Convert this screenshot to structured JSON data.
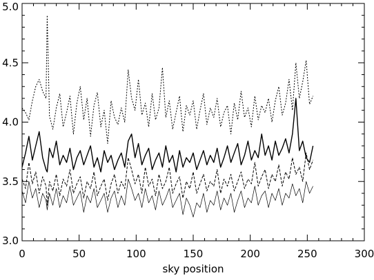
{
  "chart_data": {
    "type": "line",
    "title": "",
    "xlabel": "sky position",
    "ylabel": "",
    "xlim": [
      0,
      300
    ],
    "ylim": [
      3.0,
      5.0
    ],
    "x_ticks": [
      0,
      50,
      100,
      150,
      200,
      250,
      300
    ],
    "x_tick_labels": [
      "0",
      "50",
      "100",
      "150",
      "200",
      "250",
      "300"
    ],
    "y_ticks": [
      3.0,
      3.5,
      4.0,
      4.5,
      5.0
    ],
    "y_tick_labels": [
      "3.0",
      "3.5",
      "4.0",
      "4.5",
      "5.0"
    ],
    "x_minor_step": 10,
    "y_minor_step": 0.1,
    "grid": false,
    "legend": "none",
    "line_color": "#000000",
    "series": [
      {
        "style": "dotted",
        "x": [
          0,
          3,
          6,
          9,
          12,
          15,
          18,
          21,
          22,
          24,
          27,
          30,
          33,
          36,
          39,
          42,
          45,
          48,
          51,
          54,
          57,
          60,
          63,
          66,
          69,
          72,
          75,
          78,
          81,
          84,
          87,
          90,
          93,
          96,
          99,
          102,
          105,
          108,
          111,
          114,
          117,
          120,
          123,
          126,
          129,
          132,
          135,
          138,
          141,
          144,
          147,
          150,
          153,
          156,
          159,
          162,
          165,
          168,
          171,
          174,
          177,
          180,
          183,
          186,
          189,
          192,
          195,
          198,
          201,
          204,
          207,
          210,
          213,
          216,
          219,
          222,
          225,
          228,
          231,
          234,
          237,
          240,
          243,
          246,
          249,
          252,
          255
        ],
        "y": [
          4.12,
          4.08,
          4.02,
          4.18,
          4.3,
          4.36,
          4.26,
          4.2,
          4.9,
          4.05,
          3.94,
          4.12,
          4.24,
          3.96,
          4.08,
          4.22,
          3.9,
          4.16,
          4.3,
          4.02,
          4.2,
          3.88,
          4.14,
          4.25,
          3.96,
          4.1,
          3.82,
          4.18,
          4.04,
          3.98,
          4.12,
          4.0,
          4.44,
          4.2,
          4.1,
          4.36,
          4.06,
          4.16,
          3.96,
          4.24,
          4.02,
          4.12,
          4.46,
          4.04,
          4.18,
          3.94,
          4.08,
          4.22,
          3.92,
          4.14,
          4.06,
          4.18,
          3.94,
          4.1,
          4.24,
          3.98,
          4.12,
          4.04,
          4.2,
          3.96,
          4.08,
          4.14,
          3.9,
          4.16,
          4.02,
          4.26,
          4.04,
          4.12,
          3.96,
          4.22,
          4.02,
          4.14,
          4.08,
          4.2,
          4.0,
          4.18,
          4.3,
          4.06,
          4.16,
          4.36,
          4.1,
          4.5,
          4.2,
          4.34,
          4.52,
          4.15,
          4.22
        ]
      },
      {
        "style": "solid",
        "x": [
          0,
          3,
          6,
          9,
          12,
          15,
          18,
          21,
          22,
          24,
          27,
          30,
          33,
          36,
          39,
          42,
          45,
          48,
          51,
          54,
          57,
          60,
          63,
          66,
          69,
          72,
          75,
          78,
          81,
          84,
          87,
          90,
          93,
          96,
          99,
          102,
          105,
          108,
          111,
          114,
          117,
          120,
          123,
          126,
          129,
          132,
          135,
          138,
          141,
          144,
          147,
          150,
          153,
          156,
          159,
          162,
          165,
          168,
          171,
          174,
          177,
          180,
          183,
          186,
          189,
          192,
          195,
          198,
          201,
          204,
          207,
          210,
          213,
          216,
          219,
          222,
          225,
          228,
          231,
          234,
          237,
          240,
          243,
          246,
          249,
          252,
          255
        ],
        "y": [
          3.62,
          3.74,
          3.88,
          3.68,
          3.8,
          3.92,
          3.7,
          3.6,
          3.58,
          3.78,
          3.7,
          3.84,
          3.64,
          3.72,
          3.66,
          3.78,
          3.6,
          3.7,
          3.76,
          3.64,
          3.72,
          3.8,
          3.62,
          3.7,
          3.58,
          3.76,
          3.66,
          3.72,
          3.6,
          3.68,
          3.74,
          3.62,
          3.84,
          3.9,
          3.7,
          3.82,
          3.64,
          3.72,
          3.78,
          3.6,
          3.68,
          3.74,
          3.62,
          3.8,
          3.66,
          3.72,
          3.58,
          3.76,
          3.62,
          3.7,
          3.66,
          3.74,
          3.6,
          3.68,
          3.76,
          3.64,
          3.72,
          3.66,
          3.78,
          3.62,
          3.7,
          3.8,
          3.66,
          3.74,
          3.82,
          3.64,
          3.72,
          3.84,
          3.68,
          3.76,
          3.7,
          3.9,
          3.72,
          3.8,
          3.68,
          3.84,
          3.72,
          3.78,
          3.86,
          3.74,
          3.9,
          4.2,
          3.76,
          3.84,
          3.7,
          3.66,
          3.8
        ]
      },
      {
        "style": "dashed",
        "x": [
          0,
          3,
          6,
          9,
          12,
          15,
          18,
          21,
          22,
          24,
          27,
          30,
          33,
          36,
          39,
          42,
          45,
          48,
          51,
          54,
          57,
          60,
          63,
          66,
          69,
          72,
          75,
          78,
          81,
          84,
          87,
          90,
          93,
          96,
          99,
          102,
          105,
          108,
          111,
          114,
          117,
          120,
          123,
          126,
          129,
          132,
          135,
          138,
          141,
          144,
          147,
          150,
          153,
          156,
          159,
          162,
          165,
          168,
          171,
          174,
          177,
          180,
          183,
          186,
          189,
          192,
          195,
          198,
          201,
          204,
          207,
          210,
          213,
          216,
          219,
          222,
          225,
          228,
          231,
          234,
          237,
          240,
          243,
          246,
          249,
          252,
          255
        ],
        "y": [
          3.52,
          3.44,
          3.66,
          3.48,
          3.58,
          3.4,
          3.54,
          3.46,
          3.3,
          3.5,
          3.42,
          3.56,
          3.38,
          3.52,
          3.46,
          3.6,
          3.4,
          3.48,
          3.54,
          3.36,
          3.5,
          3.44,
          3.58,
          3.38,
          3.46,
          3.52,
          3.34,
          3.48,
          3.56,
          3.4,
          3.5,
          3.44,
          3.7,
          3.6,
          3.48,
          3.56,
          3.4,
          3.62,
          3.46,
          3.52,
          3.38,
          3.56,
          3.44,
          3.5,
          3.62,
          3.4,
          3.48,
          3.54,
          3.36,
          3.5,
          3.44,
          3.58,
          3.4,
          3.48,
          3.56,
          3.42,
          3.5,
          3.46,
          3.6,
          3.4,
          3.52,
          3.46,
          3.56,
          3.42,
          3.5,
          3.58,
          3.44,
          3.52,
          3.48,
          3.66,
          3.46,
          3.54,
          3.6,
          3.44,
          3.56,
          3.5,
          3.64,
          3.46,
          3.58,
          3.52,
          3.7,
          3.56,
          3.62,
          3.5,
          3.74,
          3.6,
          3.68
        ]
      },
      {
        "style": "thin",
        "x": [
          0,
          3,
          6,
          9,
          12,
          15,
          18,
          21,
          22,
          24,
          27,
          30,
          33,
          36,
          39,
          42,
          45,
          48,
          51,
          54,
          57,
          60,
          63,
          66,
          69,
          72,
          75,
          78,
          81,
          84,
          87,
          90,
          93,
          96,
          99,
          102,
          105,
          108,
          111,
          114,
          117,
          120,
          123,
          126,
          129,
          132,
          135,
          138,
          141,
          144,
          147,
          150,
          153,
          156,
          159,
          162,
          165,
          168,
          171,
          174,
          177,
          180,
          183,
          186,
          189,
          192,
          195,
          198,
          201,
          204,
          207,
          210,
          213,
          216,
          219,
          222,
          225,
          228,
          231,
          234,
          237,
          240,
          243,
          246,
          249,
          252,
          255
        ],
        "y": [
          3.42,
          3.32,
          3.5,
          3.36,
          3.44,
          3.28,
          3.4,
          3.34,
          3.26,
          3.4,
          3.3,
          3.44,
          3.28,
          3.38,
          3.32,
          3.46,
          3.3,
          3.36,
          3.42,
          3.24,
          3.38,
          3.32,
          3.44,
          3.28,
          3.34,
          3.4,
          3.24,
          3.36,
          3.42,
          3.28,
          3.38,
          3.3,
          3.52,
          3.44,
          3.34,
          3.4,
          3.28,
          3.44,
          3.32,
          3.38,
          3.26,
          3.42,
          3.3,
          3.36,
          3.44,
          3.28,
          3.34,
          3.4,
          3.22,
          3.36,
          3.3,
          3.2,
          3.32,
          3.28,
          3.4,
          3.24,
          3.34,
          3.3,
          3.42,
          3.26,
          3.36,
          3.3,
          3.4,
          3.24,
          3.34,
          3.42,
          3.28,
          3.36,
          3.32,
          3.46,
          3.3,
          3.38,
          3.42,
          3.28,
          3.4,
          3.34,
          3.44,
          3.3,
          3.4,
          3.36,
          3.48,
          3.38,
          3.44,
          3.32,
          3.5,
          3.4,
          3.46
        ]
      }
    ]
  }
}
